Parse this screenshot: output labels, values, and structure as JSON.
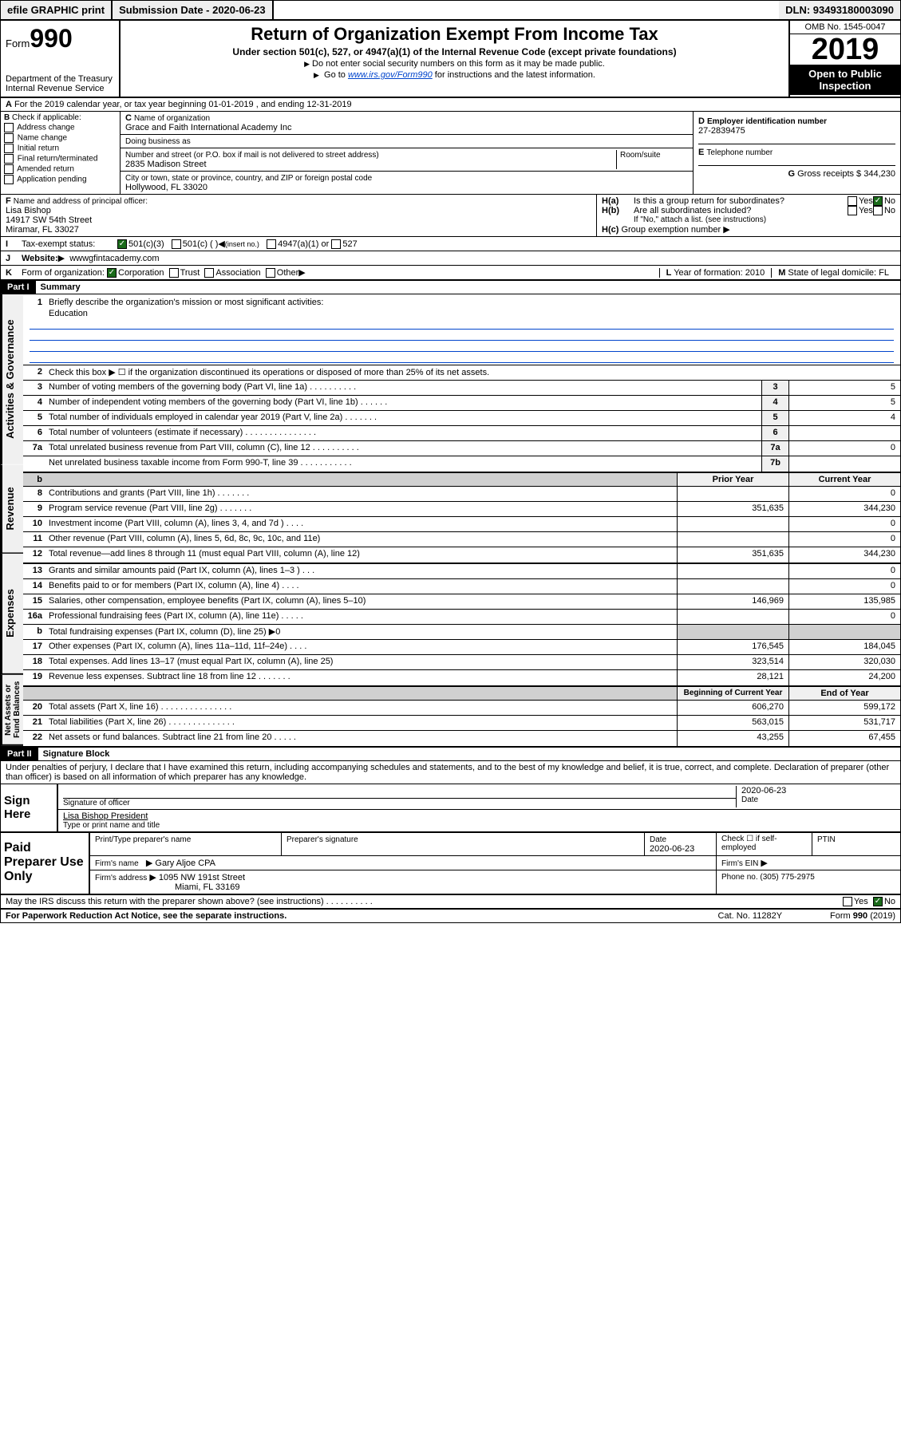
{
  "topbar": {
    "efile": "efile GRAPHIC print",
    "submission_label": "Submission Date - 2020-06-23",
    "dln_label": "DLN: 93493180003090"
  },
  "header": {
    "form_word": "Form",
    "form_num": "990",
    "dept": "Department of the Treasury",
    "irs": "Internal Revenue Service",
    "title": "Return of Organization Exempt From Income Tax",
    "subtitle": "Under section 501(c), 527, or 4947(a)(1) of the Internal Revenue Code (except private foundations)",
    "note1": "Do not enter social security numbers on this form as it may be made public.",
    "note2_pre": "Go to ",
    "note2_link": "www.irs.gov/Form990",
    "note2_post": " for instructions and the latest information.",
    "omb": "OMB No. 1545-0047",
    "year": "2019",
    "open": "Open to Public Inspection"
  },
  "row_a": "For the 2019 calendar year, or tax year beginning 01-01-2019    , and ending 12-31-2019",
  "box_b": {
    "label": "Check if applicable:",
    "opts": [
      "Address change",
      "Name change",
      "Initial return",
      "Final return/terminated",
      "Amended return",
      "Application pending"
    ]
  },
  "box_c": {
    "name_lbl": "Name of organization",
    "name": "Grace and Faith International Academy Inc",
    "dba_lbl": "Doing business as",
    "addr_lbl": "Number and street (or P.O. box if mail is not delivered to street address)",
    "room_lbl": "Room/suite",
    "addr": "2835 Madison Street",
    "city_lbl": "City or town, state or province, country, and ZIP or foreign postal code",
    "city": "Hollywood, FL  33020"
  },
  "box_d": {
    "lbl": "Employer identification number",
    "val": "27-2839475"
  },
  "box_e": {
    "lbl": "Telephone number",
    "val": ""
  },
  "box_g": {
    "lbl": "Gross receipts $ 344,230"
  },
  "box_f": {
    "lbl": "Name and address of principal officer:",
    "name": "Lisa Bishop",
    "addr1": "14917 SW 54th Street",
    "addr2": "Miramar, FL  33027"
  },
  "box_h": {
    "a": "Is this a group return for subordinates?",
    "b": "Are all subordinates included?",
    "b_note": "If \"No,\" attach a list. (see instructions)",
    "c": "Group exemption number"
  },
  "row_i": {
    "lbl": "Tax-exempt status:",
    "opt1": "501(c)(3)",
    "opt2": "501(c) (   )",
    "opt2_note": "(insert no.)",
    "opt3": "4947(a)(1) or",
    "opt4": "527"
  },
  "row_j": {
    "lbl": "Website:",
    "val": "wwwgfintacademy.com"
  },
  "row_k": {
    "lbl": "Form of organization:",
    "opts": [
      "Corporation",
      "Trust",
      "Association",
      "Other"
    ],
    "l_lbl": "Year of formation: 2010",
    "m_lbl": "State of legal domicile: FL"
  },
  "part1": {
    "hdr": "Part I",
    "title": "Summary",
    "line1_lbl": "Briefly describe the organization's mission or most significant activities:",
    "line1_val": "Education",
    "line2": "Check this box ▶ ☐  if the organization discontinued its operations or disposed of more than 25% of its net assets.",
    "rows_a": [
      {
        "n": "3",
        "d": "Number of voting members of the governing body (Part VI, line 1a)  .   .   .   .   .   .   .   .   .   .",
        "b": "3",
        "v": "5"
      },
      {
        "n": "4",
        "d": "Number of independent voting members of the governing body (Part VI, line 1b)  .   .   .   .   .   .",
        "b": "4",
        "v": "5"
      },
      {
        "n": "5",
        "d": "Total number of individuals employed in calendar year 2019 (Part V, line 2a)  .   .   .   .   .   .   .",
        "b": "5",
        "v": "4"
      },
      {
        "n": "6",
        "d": "Total number of volunteers (estimate if necessary)  .   .   .   .   .   .   .   .   .   .   .   .   .   .   .",
        "b": "6",
        "v": ""
      },
      {
        "n": "7a",
        "d": "Total unrelated business revenue from Part VIII, column (C), line 12  .   .   .   .   .   .   .   .   .   .",
        "b": "7a",
        "v": "0"
      },
      {
        "n": "",
        "d": "Net unrelated business taxable income from Form 990-T, line 39  .   .   .   .   .   .   .   .   .   .   .",
        "b": "7b",
        "v": ""
      }
    ],
    "col_prior": "Prior Year",
    "col_curr": "Current Year",
    "rows_rev": [
      {
        "n": "8",
        "d": "Contributions and grants (Part VIII, line 1h)  .   .   .   .   .   .   .",
        "p": "",
        "c": "0"
      },
      {
        "n": "9",
        "d": "Program service revenue (Part VIII, line 2g)  .   .   .   .   .   .   .",
        "p": "351,635",
        "c": "344,230"
      },
      {
        "n": "10",
        "d": "Investment income (Part VIII, column (A), lines 3, 4, and 7d )  .   .   .   .",
        "p": "",
        "c": "0"
      },
      {
        "n": "11",
        "d": "Other revenue (Part VIII, column (A), lines 5, 6d, 8c, 9c, 10c, and 11e)",
        "p": "",
        "c": "0"
      },
      {
        "n": "12",
        "d": "Total revenue—add lines 8 through 11 (must equal Part VIII, column (A), line 12)",
        "p": "351,635",
        "c": "344,230"
      }
    ],
    "rows_exp": [
      {
        "n": "13",
        "d": "Grants and similar amounts paid (Part IX, column (A), lines 1–3 )  .   .   .",
        "p": "",
        "c": "0"
      },
      {
        "n": "14",
        "d": "Benefits paid to or for members (Part IX, column (A), line 4)  .   .   .   .",
        "p": "",
        "c": "0"
      },
      {
        "n": "15",
        "d": "Salaries, other compensation, employee benefits (Part IX, column (A), lines 5–10)",
        "p": "146,969",
        "c": "135,985"
      },
      {
        "n": "16a",
        "d": "Professional fundraising fees (Part IX, column (A), line 11e)  .   .   .   .   .",
        "p": "",
        "c": "0"
      },
      {
        "n": "b",
        "d": "Total fundraising expenses (Part IX, column (D), line 25) ▶0",
        "p": "—shade—",
        "c": "—shade—"
      },
      {
        "n": "17",
        "d": "Other expenses (Part IX, column (A), lines 11a–11d, 11f–24e)  .   .   .   .",
        "p": "176,545",
        "c": "184,045"
      },
      {
        "n": "18",
        "d": "Total expenses. Add lines 13–17 (must equal Part IX, column (A), line 25)",
        "p": "323,514",
        "c": "320,030"
      },
      {
        "n": "19",
        "d": "Revenue less expenses. Subtract line 18 from line 12  .   .   .   .   .   .   .",
        "p": "28,121",
        "c": "24,200"
      }
    ],
    "col_beg": "Beginning of Current Year",
    "col_end": "End of Year",
    "rows_net": [
      {
        "n": "20",
        "d": "Total assets (Part X, line 16)  .   .   .   .   .   .   .   .   .   .   .   .   .   .   .",
        "p": "606,270",
        "c": "599,172"
      },
      {
        "n": "21",
        "d": "Total liabilities (Part X, line 26)  .   .   .   .   .   .   .   .   .   .   .   .   .   .",
        "p": "563,015",
        "c": "531,717"
      },
      {
        "n": "22",
        "d": "Net assets or fund balances. Subtract line 21 from line 20  .   .   .   .   .",
        "p": "43,255",
        "c": "67,455"
      }
    ],
    "vtabs": {
      "gov": "Activities & Governance",
      "rev": "Revenue",
      "exp": "Expenses",
      "net": "Net Assets or Fund Balances"
    }
  },
  "part2": {
    "hdr": "Part II",
    "title": "Signature Block",
    "decl": "Under penalties of perjury, I declare that I have examined this return, including accompanying schedules and statements, and to the best of my knowledge and belief, it is true, correct, and complete. Declaration of preparer (other than officer) is based on all information of which preparer has any knowledge.",
    "sign_here": "Sign Here",
    "sig_officer": "Signature of officer",
    "date": "Date",
    "date_val": "2020-06-23",
    "name_title": "Lisa Bishop  President",
    "name_title_lbl": "Type or print name and title",
    "paid_lbl": "Paid Preparer Use Only",
    "prep_name_lbl": "Print/Type preparer's name",
    "prep_sig_lbl": "Preparer's signature",
    "prep_date_lbl": "Date",
    "prep_date": "2020-06-23",
    "check_if": "Check ☐ if self-employed",
    "ptin": "PTIN",
    "firm_name_lbl": "Firm's name",
    "firm_name": "Gary Aljoe CPA",
    "firm_ein_lbl": "Firm's EIN",
    "firm_addr_lbl": "Firm's address",
    "firm_addr1": "1095 NW 191st Street",
    "firm_addr2": "Miami, FL  33169",
    "phone_lbl": "Phone no. (305) 775-2975",
    "discuss": "May the IRS discuss this return with the preparer shown above? (see instructions)  .    .    .    .    .    .    .    .    .    ."
  },
  "footer": {
    "paperwork": "For Paperwork Reduction Act Notice, see the separate instructions.",
    "cat": "Cat. No. 11282Y",
    "form": "Form 990 (2019)"
  },
  "labels": {
    "yes": "Yes",
    "no": "No",
    "b": "B",
    "c": "C",
    "d": "D",
    "e": "E",
    "f": "F",
    "g": "G",
    "ha": "H(a)",
    "hb": "H(b)",
    "hc": "H(c)",
    "i": "I",
    "j": "J",
    "k": "K",
    "l": "L",
    "m": "M",
    "a": "A"
  }
}
